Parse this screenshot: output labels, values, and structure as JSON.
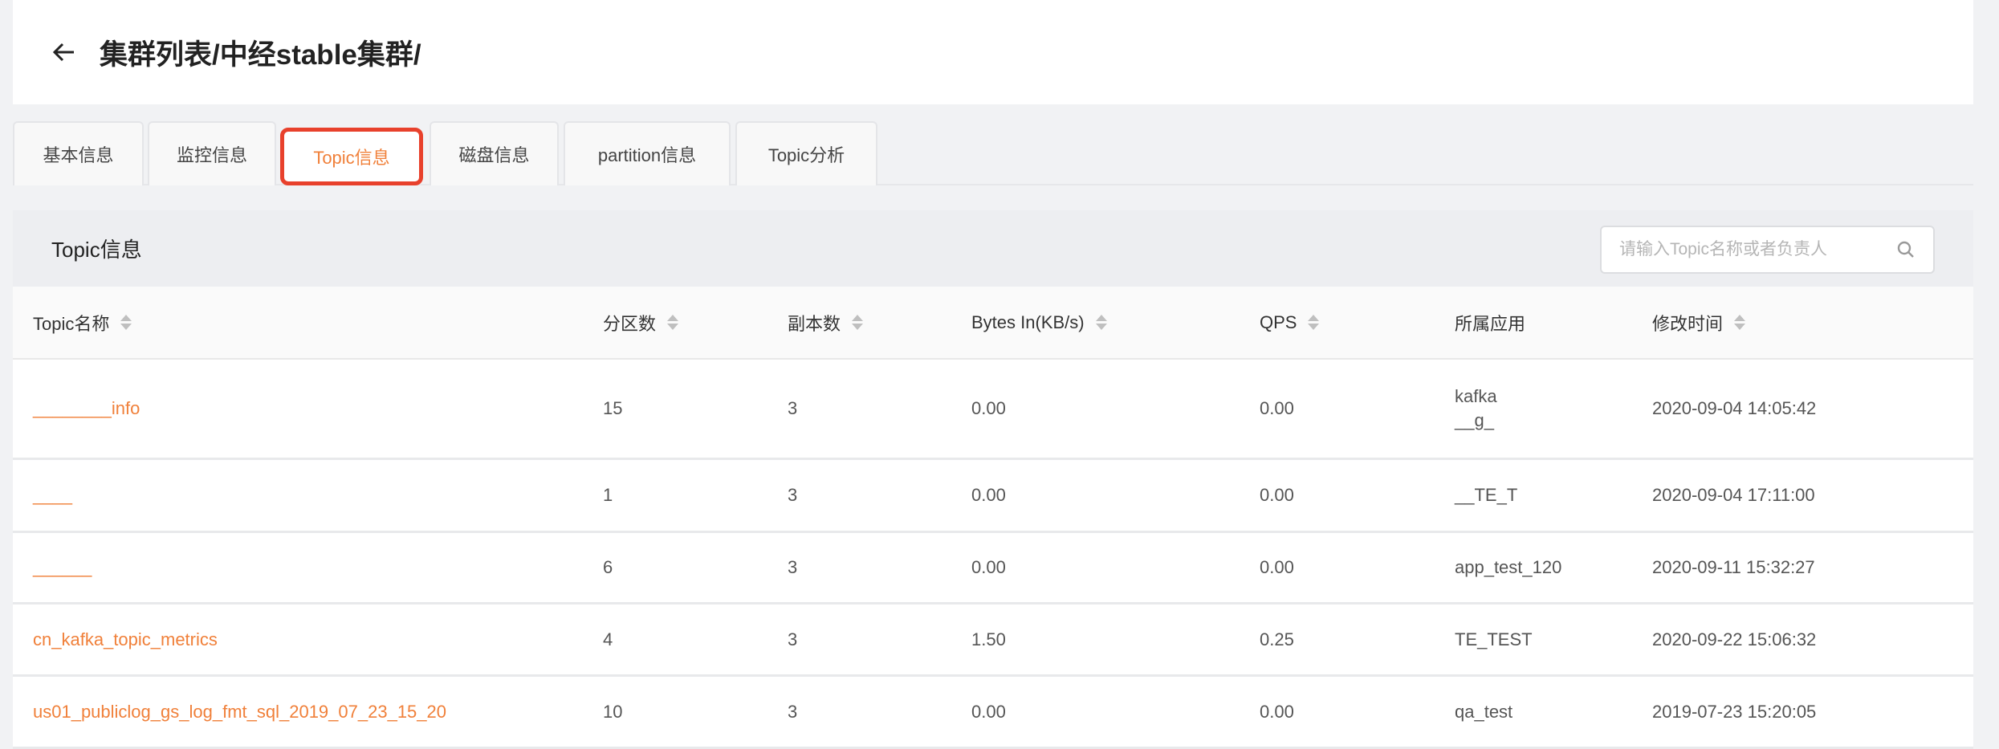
{
  "header": {
    "title": "集群列表/中经stable集群/",
    "back_icon": "arrow-left-icon"
  },
  "tabs": [
    {
      "label": "基本信息",
      "active": false
    },
    {
      "label": "监控信息",
      "active": false
    },
    {
      "label": "Topic信息",
      "active": true
    },
    {
      "label": "磁盘信息",
      "active": false
    },
    {
      "label": "partition信息",
      "active": false
    },
    {
      "label": "Topic分析",
      "active": false
    }
  ],
  "card": {
    "title": "Topic信息",
    "search_placeholder": "请输入Topic名称或者负责人",
    "search_value": ""
  },
  "table": {
    "columns": [
      "Topic名称",
      "分区数",
      "副本数",
      "Bytes In(KB/s)",
      "QPS",
      "所属应用",
      "修改时间"
    ],
    "rows": [
      {
        "name": "________info",
        "partitions": "15",
        "replicas": "3",
        "bytes_in": "0.00",
        "qps": "0.00",
        "app": "kafka",
        "app2": "__g_",
        "time": "2020-09-04 14:05:42"
      },
      {
        "name": "____",
        "partitions": "1",
        "replicas": "3",
        "bytes_in": "0.00",
        "qps": "0.00",
        "app": "__TE_T",
        "app2": "",
        "time": "2020-09-04 17:11:00"
      },
      {
        "name": "______",
        "partitions": "6",
        "replicas": "3",
        "bytes_in": "0.00",
        "qps": "0.00",
        "app": "app_test_120",
        "app2": "",
        "time": "2020-09-11 15:32:27"
      },
      {
        "name": "cn_kafka_topic_metrics",
        "partitions": "4",
        "replicas": "3",
        "bytes_in": "1.50",
        "qps": "0.25",
        "app": "TE_TEST",
        "app2": "",
        "time": "2020-09-22 15:06:32"
      },
      {
        "name": "us01_publiclog_gs_log_fmt_sql_2019_07_23_15_20",
        "partitions": "10",
        "replicas": "3",
        "bytes_in": "0.00",
        "qps": "0.00",
        "app": "qa_test",
        "app2": "",
        "time": "2019-07-23 15:20:05"
      }
    ]
  },
  "colors": {
    "accent": "#f0803a",
    "highlight_border": "#e8412c"
  }
}
